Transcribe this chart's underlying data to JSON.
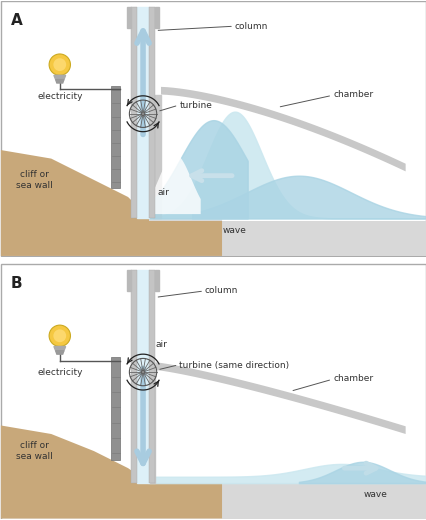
{
  "bg_color": "#ffffff",
  "cliff_color": "#c8a87a",
  "wall_color": "#909090",
  "water_color": "#aad4e4",
  "water_light": "#cce8f0",
  "water_deep": "#88c4d8",
  "floor_color": "#d8d8d8",
  "column_wall_color": "#c0c0c0",
  "column_interior": "#ddf0f8",
  "arrow_color": "#a8cce0",
  "chamber_color": "#c8c8c8",
  "label_A": "A",
  "label_B": "B",
  "label_column": "column",
  "label_turbine_A": "turbine",
  "label_turbine_B": "turbine (same direction)",
  "label_electricity": "electricity",
  "label_cliff": "cliff or\nsea wall",
  "label_air_A": "air",
  "label_air_B": "air",
  "label_wave_A": "wave",
  "label_wave_B": "wave",
  "label_chamber": "chamber",
  "text_color": "#333333"
}
